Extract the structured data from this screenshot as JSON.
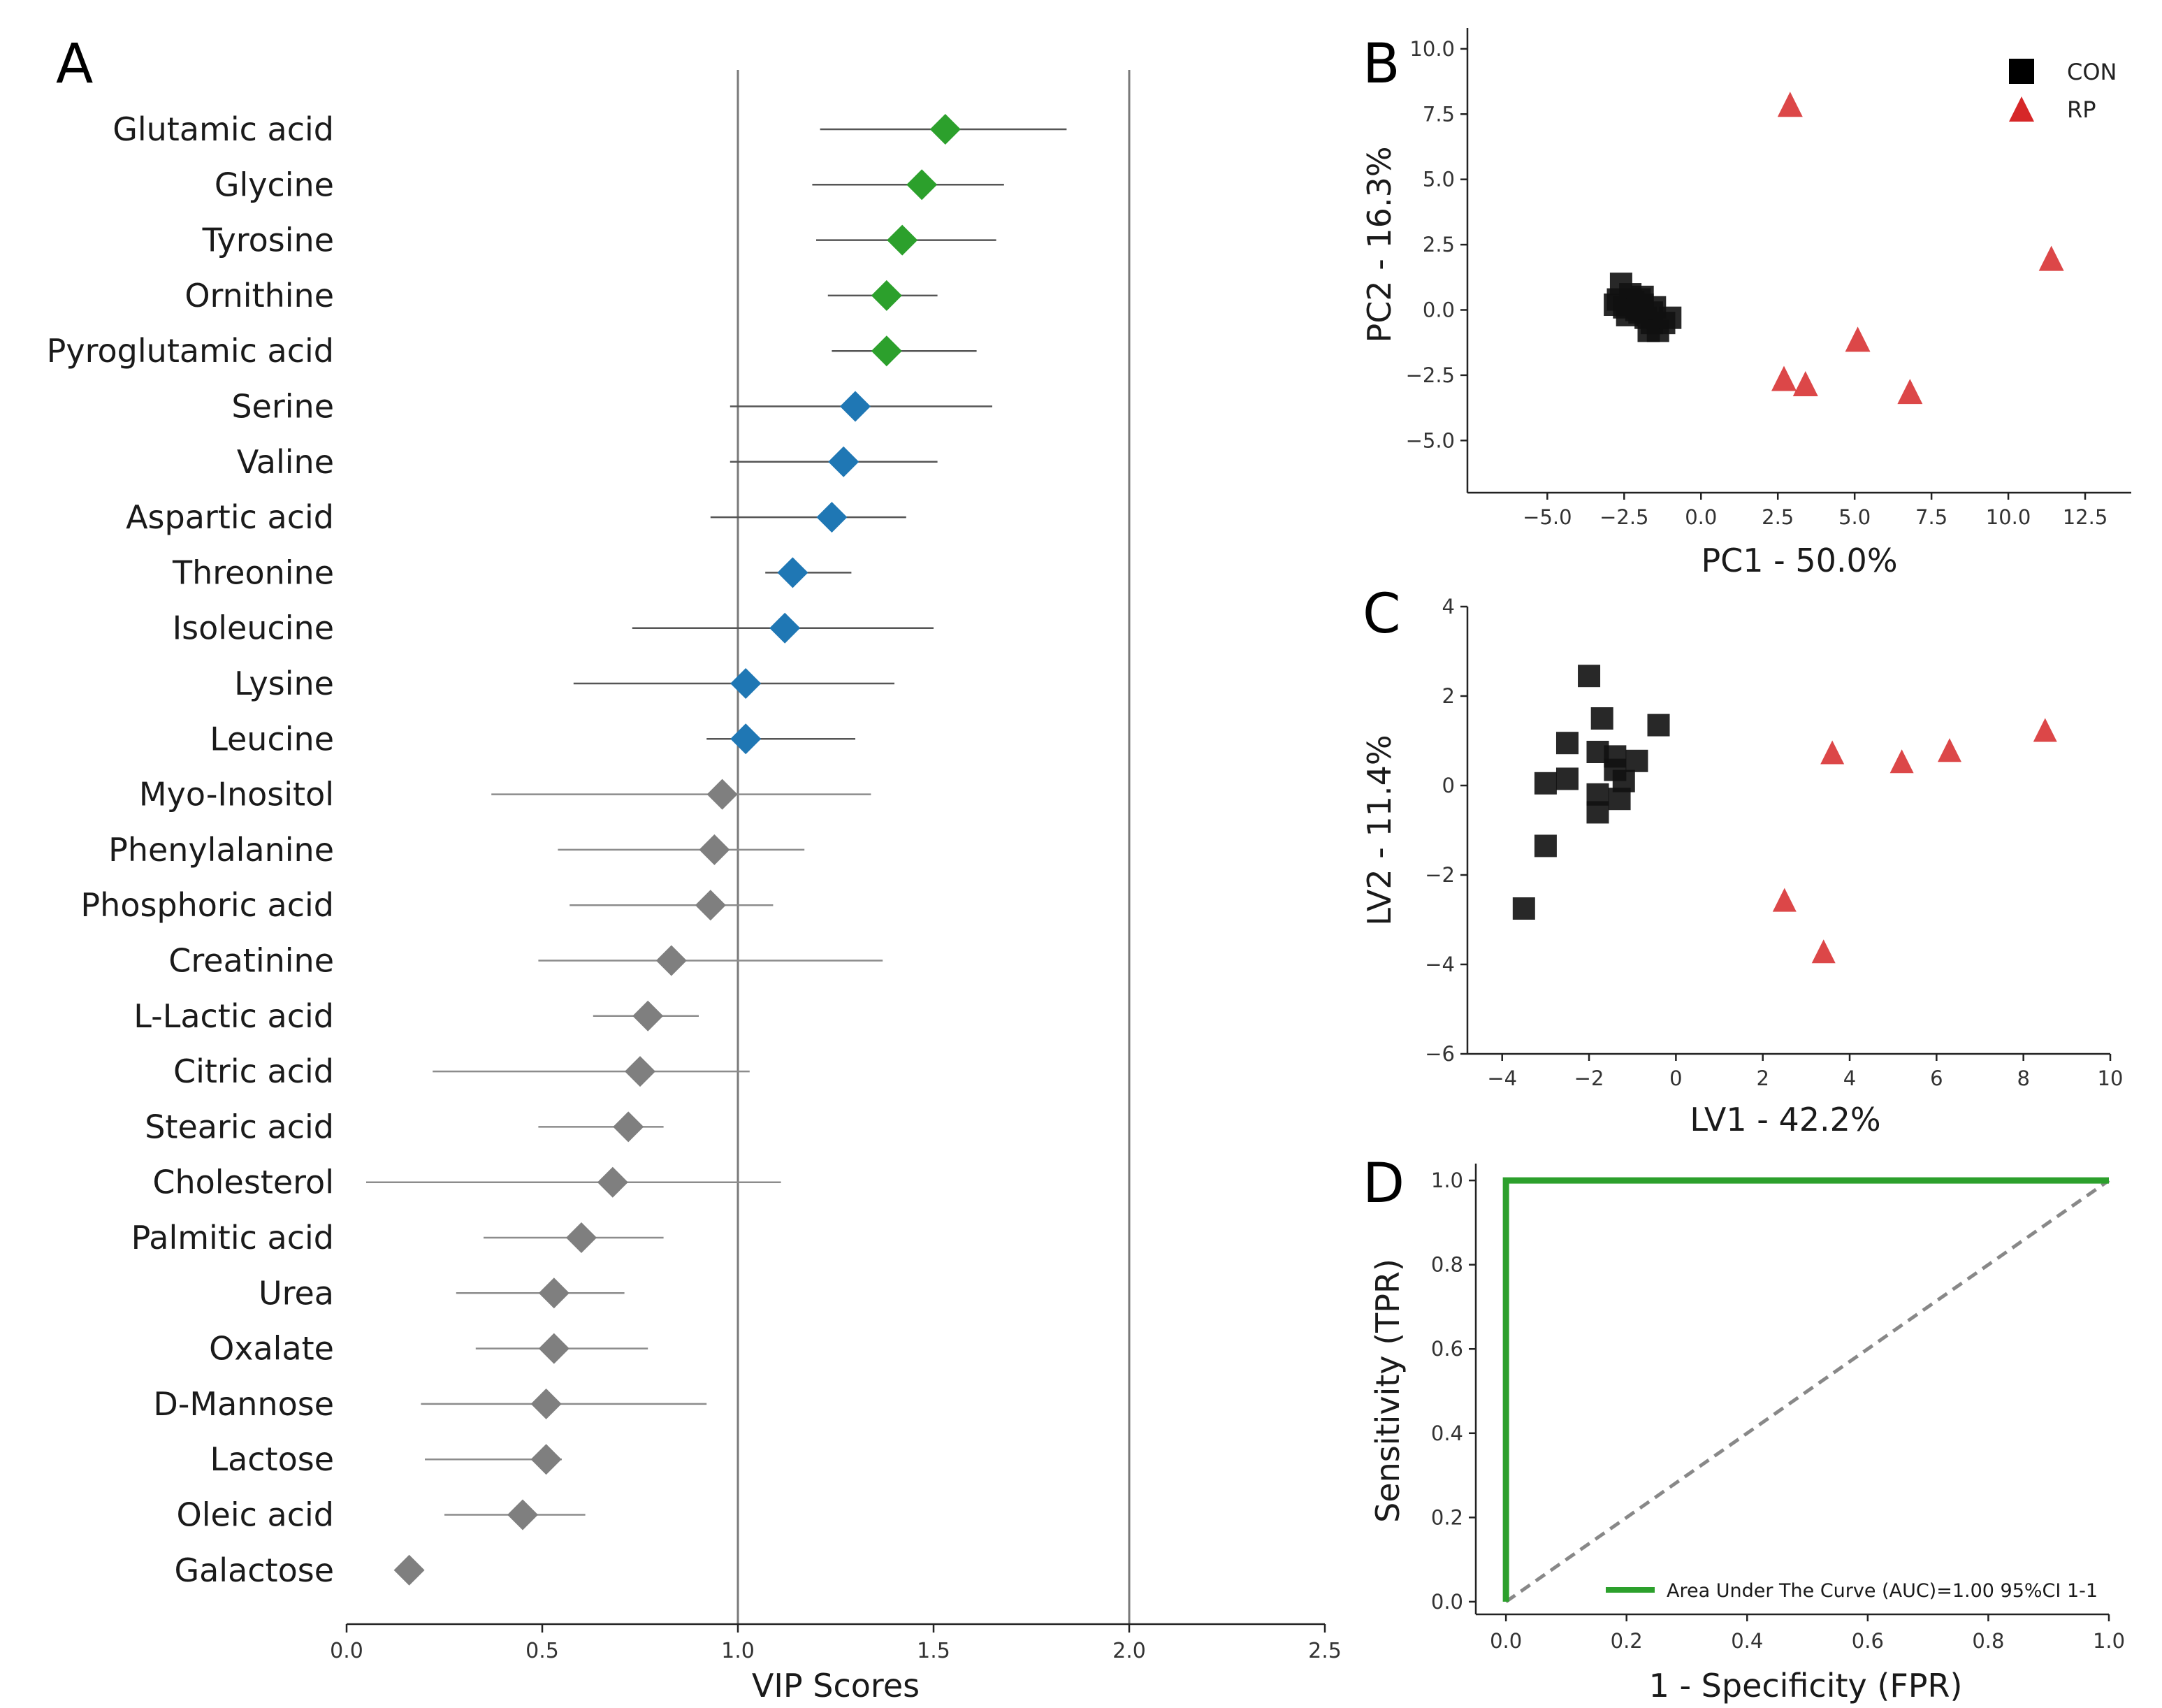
{
  "panels": {
    "A": "A",
    "B": "B",
    "C": "C",
    "D": "D"
  },
  "colors": {
    "green": "#2ca02c",
    "blue": "#1f77b4",
    "gray": "#7f7f7f",
    "con": "#111111",
    "rp": "#d62728",
    "roc": "#2ca02c",
    "diag": "#888888"
  },
  "chart_data": [
    {
      "id": "A",
      "type": "scatter",
      "title": "",
      "xlabel": "VIP Scores",
      "ylabel": "",
      "xlim": [
        0.0,
        2.5
      ],
      "xticks": [
        "0.0",
        "0.5",
        "1.0",
        "1.5",
        "2.0",
        "2.5"
      ],
      "reference_lines": [
        1.0,
        2.0
      ],
      "items": [
        {
          "name": "Glutamic acid",
          "vip": 1.53,
          "low": 1.21,
          "high": 1.84,
          "group": "green"
        },
        {
          "name": "Glycine",
          "vip": 1.47,
          "low": 1.19,
          "high": 1.68,
          "group": "green"
        },
        {
          "name": "Tyrosine",
          "vip": 1.42,
          "low": 1.2,
          "high": 1.66,
          "group": "green"
        },
        {
          "name": "Ornithine",
          "vip": 1.38,
          "low": 1.23,
          "high": 1.51,
          "group": "green"
        },
        {
          "name": "Pyroglutamic acid",
          "vip": 1.38,
          "low": 1.24,
          "high": 1.61,
          "group": "green"
        },
        {
          "name": "Serine",
          "vip": 1.3,
          "low": 0.98,
          "high": 1.65,
          "group": "blue"
        },
        {
          "name": "Valine",
          "vip": 1.27,
          "low": 0.98,
          "high": 1.51,
          "group": "blue"
        },
        {
          "name": "Aspartic acid",
          "vip": 1.24,
          "low": 0.93,
          "high": 1.43,
          "group": "blue"
        },
        {
          "name": "Threonine",
          "vip": 1.14,
          "low": 1.07,
          "high": 1.29,
          "group": "blue"
        },
        {
          "name": "Isoleucine",
          "vip": 1.12,
          "low": 0.73,
          "high": 1.5,
          "group": "blue"
        },
        {
          "name": "Lysine",
          "vip": 1.02,
          "low": 0.58,
          "high": 1.4,
          "group": "blue"
        },
        {
          "name": "Leucine",
          "vip": 1.02,
          "low": 0.92,
          "high": 1.3,
          "group": "blue"
        },
        {
          "name": "Myo-Inositol",
          "vip": 0.96,
          "low": 0.37,
          "high": 1.34,
          "group": "gray"
        },
        {
          "name": "Phenylalanine",
          "vip": 0.94,
          "low": 0.54,
          "high": 1.17,
          "group": "gray"
        },
        {
          "name": "Phosphoric acid",
          "vip": 0.93,
          "low": 0.57,
          "high": 1.09,
          "group": "gray"
        },
        {
          "name": "Creatinine",
          "vip": 0.83,
          "low": 0.49,
          "high": 1.37,
          "group": "gray"
        },
        {
          "name": "L-Lactic acid",
          "vip": 0.77,
          "low": 0.63,
          "high": 0.9,
          "group": "gray"
        },
        {
          "name": "Citric acid",
          "vip": 0.75,
          "low": 0.22,
          "high": 1.03,
          "group": "gray"
        },
        {
          "name": "Stearic acid",
          "vip": 0.72,
          "low": 0.49,
          "high": 0.81,
          "group": "gray"
        },
        {
          "name": "Cholesterol",
          "vip": 0.68,
          "low": 0.05,
          "high": 1.11,
          "group": "gray"
        },
        {
          "name": "Palmitic acid",
          "vip": 0.6,
          "low": 0.35,
          "high": 0.81,
          "group": "gray"
        },
        {
          "name": "Urea",
          "vip": 0.53,
          "low": 0.28,
          "high": 0.71,
          "group": "gray"
        },
        {
          "name": "Oxalate",
          "vip": 0.53,
          "low": 0.33,
          "high": 0.77,
          "group": "gray"
        },
        {
          "name": "D-Mannose",
          "vip": 0.51,
          "low": 0.19,
          "high": 0.92,
          "group": "gray"
        },
        {
          "name": "Lactose",
          "vip": 0.51,
          "low": 0.2,
          "high": 0.55,
          "group": "gray"
        },
        {
          "name": "Oleic acid",
          "vip": 0.45,
          "low": 0.25,
          "high": 0.61,
          "group": "gray"
        },
        {
          "name": "Galactose",
          "vip": 0.16,
          "low": 0.16,
          "high": 0.16,
          "group": "gray"
        }
      ]
    },
    {
      "id": "B",
      "type": "scatter",
      "title": "",
      "xlabel": "PC1 - 50.0%",
      "ylabel": "PC2 - 16.3%",
      "xlim": [
        -7.6,
        14.0
      ],
      "ylim": [
        -7.0,
        10.8
      ],
      "xticks": [
        -5.0,
        -2.5,
        0.0,
        2.5,
        5.0,
        7.5,
        10.0,
        12.5
      ],
      "yticks": [
        -5.0,
        -2.5,
        0.0,
        2.5,
        5.0,
        7.5,
        10.0
      ],
      "tick_labels_x": [
        "−5.0",
        "−2.5",
        "0.0",
        "2.5",
        "5.0",
        "7.5",
        "10.0",
        "12.5"
      ],
      "tick_labels_y": [
        "−5.0",
        "−2.5",
        "0.0",
        "2.5",
        "5.0",
        "7.5",
        "10.0"
      ],
      "legend": {
        "position": "top-right",
        "entries": [
          "CON",
          "RP"
        ]
      },
      "series": [
        {
          "name": "CON",
          "marker": "square",
          "points": [
            [
              -2.6,
              1.0
            ],
            [
              -2.7,
              0.4
            ],
            [
              -2.3,
              0.6
            ],
            [
              -2.5,
              0.1
            ],
            [
              -2.2,
              0.3
            ],
            [
              -2.0,
              0.4
            ],
            [
              -1.9,
              0.2
            ],
            [
              -2.0,
              -0.1
            ],
            [
              -1.8,
              -0.3
            ],
            [
              -1.6,
              -0.1
            ],
            [
              -1.6,
              -0.5
            ],
            [
              -1.7,
              -0.8
            ],
            [
              -1.4,
              -0.8
            ],
            [
              -1.2,
              -0.5
            ],
            [
              -1.0,
              -0.3
            ],
            [
              -2.4,
              -0.2
            ],
            [
              -2.1,
              0.0
            ],
            [
              -1.9,
              0.5
            ],
            [
              -1.5,
              0.1
            ],
            [
              -2.8,
              0.2
            ]
          ]
        },
        {
          "name": "RP",
          "marker": "triangle",
          "points": [
            [
              2.9,
              7.8
            ],
            [
              2.7,
              -2.7
            ],
            [
              3.4,
              -2.9
            ],
            [
              5.1,
              -1.2
            ],
            [
              6.8,
              -3.2
            ],
            [
              11.4,
              1.9
            ]
          ]
        }
      ]
    },
    {
      "id": "C",
      "type": "scatter",
      "title": "",
      "xlabel": "LV1 - 42.2%",
      "ylabel": "LV2 - 11.4%",
      "xlim": [
        -4.8,
        10.0
      ],
      "ylim": [
        -6.0,
        4.0
      ],
      "xticks": [
        -4,
        -2,
        0,
        2,
        4,
        6,
        8,
        10
      ],
      "yticks": [
        -6,
        -4,
        -2,
        0,
        2,
        4
      ],
      "tick_labels_x": [
        "−4",
        "−2",
        "0",
        "2",
        "4",
        "6",
        "8",
        "10"
      ],
      "tick_labels_y": [
        "−6",
        "−4",
        "−2",
        "0",
        "2",
        "4"
      ],
      "series": [
        {
          "name": "CON",
          "marker": "square",
          "points": [
            [
              -2.0,
              2.45
            ],
            [
              -1.7,
              1.5
            ],
            [
              -0.4,
              1.35
            ],
            [
              -2.5,
              0.95
            ],
            [
              -1.8,
              0.75
            ],
            [
              -1.4,
              0.65
            ],
            [
              -0.9,
              0.55
            ],
            [
              -1.4,
              0.35
            ],
            [
              -3.0,
              0.05
            ],
            [
              -2.5,
              0.15
            ],
            [
              -1.2,
              0.1
            ],
            [
              -1.8,
              -0.2
            ],
            [
              -1.3,
              -0.3
            ],
            [
              -1.8,
              -0.6
            ],
            [
              -3.0,
              -1.35
            ],
            [
              -3.5,
              -2.75
            ]
          ]
        },
        {
          "name": "RP",
          "marker": "triangle",
          "points": [
            [
              3.6,
              0.7
            ],
            [
              5.2,
              0.5
            ],
            [
              6.3,
              0.75
            ],
            [
              8.5,
              1.2
            ],
            [
              2.5,
              -2.6
            ],
            [
              3.4,
              -3.75
            ]
          ]
        }
      ]
    },
    {
      "id": "D",
      "type": "line",
      "title": "",
      "xlabel": "1 - Specificity (FPR)",
      "ylabel": "Sensitivity (TPR)",
      "xlim": [
        -0.05,
        1.0
      ],
      "ylim": [
        -0.03,
        1.04
      ],
      "xticks": [
        "0.0",
        "0.2",
        "0.4",
        "0.6",
        "0.8",
        "1.0"
      ],
      "yticks": [
        "0.0",
        "0.2",
        "0.4",
        "0.6",
        "0.8",
        "1.0"
      ],
      "legend": {
        "position": "bottom-right",
        "entries": [
          "Area Under The Curve (AUC)=1.00 95%CI 1-1"
        ]
      },
      "series": [
        {
          "name": "ROC",
          "x": [
            0.0,
            0.0,
            1.0
          ],
          "y": [
            0.0,
            1.0,
            1.0
          ]
        },
        {
          "name": "chance",
          "x": [
            0.0,
            1.0
          ],
          "y": [
            0.0,
            1.0
          ]
        }
      ]
    }
  ]
}
